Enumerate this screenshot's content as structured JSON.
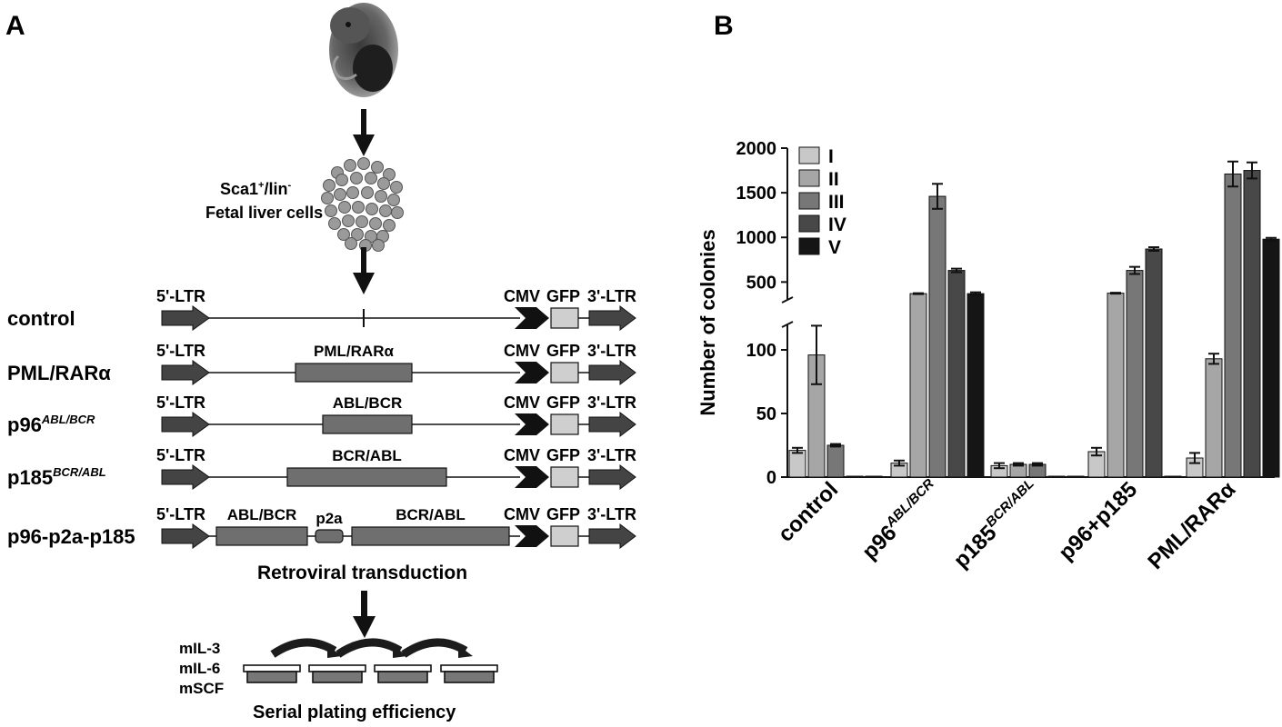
{
  "panel_a": {
    "label": "A",
    "cells_line1_main": "Sca1",
    "cells_line1_sup1": "+",
    "cells_line1_mid": "/lin",
    "cells_line1_sup2": "-",
    "cells_line2": "Fetal liver cells",
    "constructs": [
      {
        "name": "control",
        "name_sup": "",
        "ltr5": "5'-LTR",
        "inserts": [],
        "cmv": "CMV",
        "gfp": "GFP",
        "ltr3": "3'-LTR"
      },
      {
        "name": "PML/RARα",
        "name_sup": "",
        "ltr5": "5'-LTR",
        "inserts": [
          "PML/RARα"
        ],
        "cmv": "CMV",
        "gfp": "GFP",
        "ltr3": "3'-LTR"
      },
      {
        "name": "p96",
        "name_sup": "ABL/BCR",
        "ltr5": "5'-LTR",
        "inserts": [
          "ABL/BCR"
        ],
        "cmv": "CMV",
        "gfp": "GFP",
        "ltr3": "3'-LTR"
      },
      {
        "name": "p185",
        "name_sup": "BCR/ABL",
        "ltr5": "5'-LTR",
        "inserts": [
          "BCR/ABL"
        ],
        "cmv": "CMV",
        "gfp": "GFP",
        "ltr3": "3'-LTR"
      },
      {
        "name": "p96-p2a-p185",
        "name_sup": "",
        "ltr5": "5'-LTR",
        "inserts": [
          "ABL/BCR",
          "p2a",
          "BCR/ABL"
        ],
        "cmv": "CMV",
        "gfp": "GFP",
        "ltr3": "3'-LTR"
      }
    ],
    "transduction_label": "Retroviral transduction",
    "cytokines": [
      "mIL-3",
      "mIL-6",
      "mSCF"
    ],
    "plating_label": "Serial plating efficiency"
  },
  "panel_b": {
    "label": "B"
  },
  "chart_data": {
    "type": "bar",
    "ylabel": "Number of colonies",
    "y_axis_broken": true,
    "lower_segment": {
      "ylim": [
        0,
        120
      ],
      "ticks": [
        0,
        50,
        100
      ]
    },
    "upper_segment": {
      "ylim": [
        300,
        2000
      ],
      "ticks": [
        500,
        1000,
        1500,
        2000
      ]
    },
    "legend_placement": "top-left",
    "categories": [
      {
        "main": "control",
        "sup": ""
      },
      {
        "main": "p96",
        "sup": "ABL/BCR"
      },
      {
        "main": "p185",
        "sup": "BCR/ABL"
      },
      {
        "main": "p96+p185",
        "sup": ""
      },
      {
        "main": "PML/RARα",
        "sup": ""
      }
    ],
    "series": [
      {
        "name": "I",
        "color": "#c8c8c8",
        "values": [
          21,
          11,
          9,
          20,
          15
        ],
        "errors": [
          2,
          2,
          2,
          3,
          4
        ]
      },
      {
        "name": "II",
        "color": "#a6a6a6",
        "values": [
          96,
          370,
          10,
          375,
          93
        ],
        "errors": [
          23,
          5,
          1,
          5,
          4
        ]
      },
      {
        "name": "III",
        "color": "#777777",
        "values": [
          25,
          1460,
          10,
          630,
          1710
        ],
        "errors": [
          1,
          140,
          1,
          40,
          140
        ]
      },
      {
        "name": "IV",
        "color": "#484848",
        "values": [
          0,
          630,
          0,
          870,
          1750
        ],
        "errors": [
          0,
          20,
          0,
          20,
          90
        ]
      },
      {
        "name": "V",
        "color": "#151515",
        "values": [
          0,
          370,
          0,
          0,
          980
        ],
        "errors": [
          0,
          15,
          0,
          0,
          15
        ]
      }
    ]
  }
}
